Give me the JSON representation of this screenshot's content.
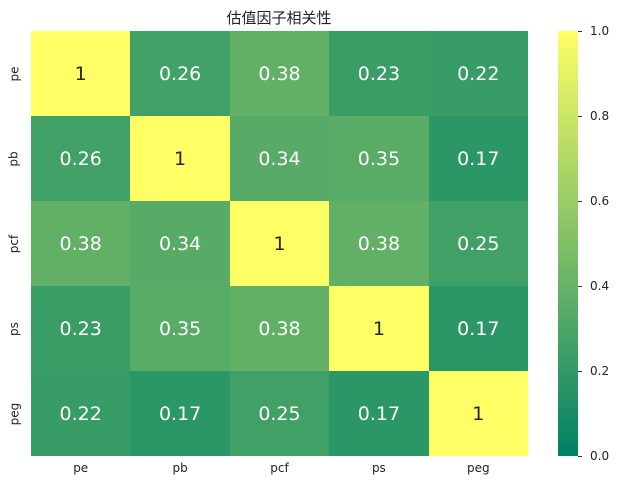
{
  "chart_data": {
    "type": "heatmap",
    "title": "估值因子相关性",
    "xlabel": "",
    "ylabel": "",
    "x_categories": [
      "pe",
      "pb",
      "pcf",
      "ps",
      "peg"
    ],
    "y_categories": [
      "pe",
      "pb",
      "pcf",
      "ps",
      "peg"
    ],
    "values": [
      [
        1,
        0.26,
        0.38,
        0.23,
        0.22
      ],
      [
        0.26,
        1,
        0.34,
        0.35,
        0.17
      ],
      [
        0.38,
        0.34,
        1,
        0.38,
        0.25
      ],
      [
        0.23,
        0.35,
        0.38,
        1,
        0.17
      ],
      [
        0.22,
        0.17,
        0.25,
        0.17,
        1
      ]
    ],
    "labels": [
      [
        "1",
        "0.26",
        "0.38",
        "0.23",
        "0.22"
      ],
      [
        "0.26",
        "1",
        "0.34",
        "0.35",
        "0.17"
      ],
      [
        "0.38",
        "0.34",
        "1",
        "0.38",
        "0.25"
      ],
      [
        "0.23",
        "0.35",
        "0.38",
        "1",
        "0.17"
      ],
      [
        "0.22",
        "0.17",
        "0.25",
        "0.17",
        "1"
      ]
    ],
    "colormap": "summer",
    "vmin": 0.0,
    "vmax": 1.0,
    "colorbar": {
      "ticks": [
        "0.0",
        "0.2",
        "0.4",
        "0.6",
        "0.8",
        "1.0"
      ],
      "position": "right"
    },
    "annot": true,
    "grid": false
  },
  "colors": {
    "low": "#008066",
    "high": "#ffff66"
  }
}
